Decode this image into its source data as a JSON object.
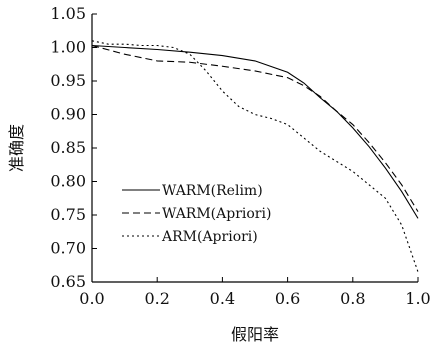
{
  "chart_data": {
    "type": "line",
    "title": "",
    "xlabel": "假阳率",
    "ylabel": "准确度",
    "xlim": [
      0.0,
      1.0
    ],
    "ylim": [
      0.65,
      1.05
    ],
    "xticks": [
      "0.0",
      "0.2",
      "0.4",
      "0.6",
      "0.8",
      "1.0"
    ],
    "yticks": [
      "0.65",
      "0.70",
      "0.75",
      "0.80",
      "0.85",
      "0.90",
      "0.95",
      "1.00",
      "1.05"
    ],
    "grid": false,
    "legend_position": "lower-left",
    "series": [
      {
        "name": "WARM(Relim)",
        "style": "solid",
        "color": "#000000",
        "x": [
          0.0,
          0.1,
          0.2,
          0.3,
          0.4,
          0.5,
          0.6,
          0.65,
          0.7,
          0.75,
          0.8,
          0.85,
          0.9,
          0.95,
          1.0
        ],
        "y": [
          1.003,
          1.0,
          0.997,
          0.993,
          0.988,
          0.98,
          0.963,
          0.947,
          0.925,
          0.905,
          0.88,
          0.852,
          0.82,
          0.785,
          0.745
        ]
      },
      {
        "name": "WARM(Apriori)",
        "style": "dashed",
        "color": "#000000",
        "x": [
          0.0,
          0.1,
          0.2,
          0.3,
          0.4,
          0.5,
          0.6,
          0.65,
          0.7,
          0.75,
          0.8,
          0.85,
          0.9,
          0.95,
          1.0
        ],
        "y": [
          1.003,
          0.99,
          0.98,
          0.978,
          0.972,
          0.965,
          0.955,
          0.943,
          0.927,
          0.905,
          0.885,
          0.858,
          0.828,
          0.795,
          0.755
        ]
      },
      {
        "name": "ARM(Apriori)",
        "style": "dotted",
        "color": "#000000",
        "x": [
          0.0,
          0.05,
          0.1,
          0.15,
          0.2,
          0.25,
          0.3,
          0.35,
          0.4,
          0.45,
          0.5,
          0.55,
          0.6,
          0.65,
          0.7,
          0.75,
          0.8,
          0.85,
          0.9,
          0.95,
          1.0
        ],
        "y": [
          1.01,
          1.005,
          1.005,
          1.003,
          1.003,
          1.0,
          0.99,
          0.965,
          0.935,
          0.912,
          0.9,
          0.894,
          0.885,
          0.865,
          0.845,
          0.83,
          0.815,
          0.795,
          0.775,
          0.735,
          0.665
        ]
      }
    ]
  }
}
